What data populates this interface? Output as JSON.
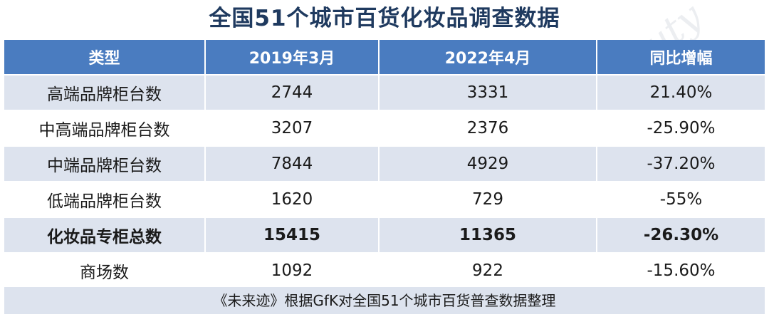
{
  "title": "全国51个城市百货化妆品调查数据",
  "watermark": "E-beauty",
  "table": {
    "headers": [
      "类型",
      "2019年3月",
      "2022年4月",
      "同比增幅"
    ],
    "rows": [
      {
        "type": "高端品牌柜台数",
        "v2019": "2744",
        "v2022": "3331",
        "growth": "21.40%"
      },
      {
        "type": "中高端品牌柜台数",
        "v2019": "3207",
        "v2022": "2376",
        "growth": "-25.90%"
      },
      {
        "type": "中端品牌柜台数",
        "v2019": "7844",
        "v2022": "4929",
        "growth": "-37.20%"
      },
      {
        "type": "低端品牌柜台数",
        "v2019": "1620",
        "v2022": "729",
        "growth": "-55%"
      },
      {
        "type": "化妆品专柜总数",
        "v2019": "15415",
        "v2022": "11365",
        "growth": "-26.30%"
      },
      {
        "type": "商场数",
        "v2019": "1092",
        "v2022": "922",
        "growth": "-15.60%"
      }
    ]
  },
  "footer": "《未来迹》根据GfK对全国51个城市百货普查数据整理"
}
